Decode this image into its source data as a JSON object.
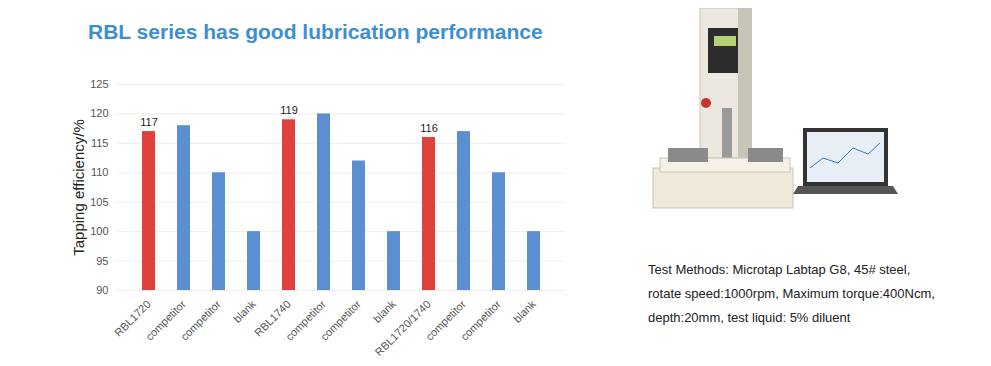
{
  "chart_data": {
    "type": "bar",
    "title": "RBL series has good lubrication performance",
    "y_label": "Tapping efficiency/%",
    "categories": [
      "RBL1720",
      "competitor",
      "competitor",
      "blank",
      "RBL1740",
      "competitor",
      "competitor",
      "blank",
      "RBL1720/1740",
      "competitor",
      "competitor",
      "blank"
    ],
    "values": [
      117,
      118,
      110,
      100,
      119,
      120,
      112,
      100,
      116,
      117,
      110,
      100
    ],
    "value_labels": [
      "117",
      null,
      null,
      null,
      "119",
      null,
      null,
      null,
      "116",
      null,
      null,
      null
    ],
    "colors": [
      "#e0413d",
      "#5b8fd2",
      "#5b8fd2",
      "#5b8fd2",
      "#e0413d",
      "#5b8fd2",
      "#5b8fd2",
      "#5b8fd2",
      "#e0413d",
      "#5b8fd2",
      "#5b8fd2",
      "#5b8fd2"
    ],
    "ylim": [
      90,
      125
    ],
    "yticks": [
      90,
      95,
      100,
      105,
      110,
      115,
      120,
      125
    ],
    "grid": true,
    "annotations": [
      "Test Methods: Microtap Labtap G8, 45# steel,",
      "rotate speed:1000rpm, Maximum torque:400Ncm,",
      "depth:20mm, test liquid: 5% diluent"
    ]
  }
}
